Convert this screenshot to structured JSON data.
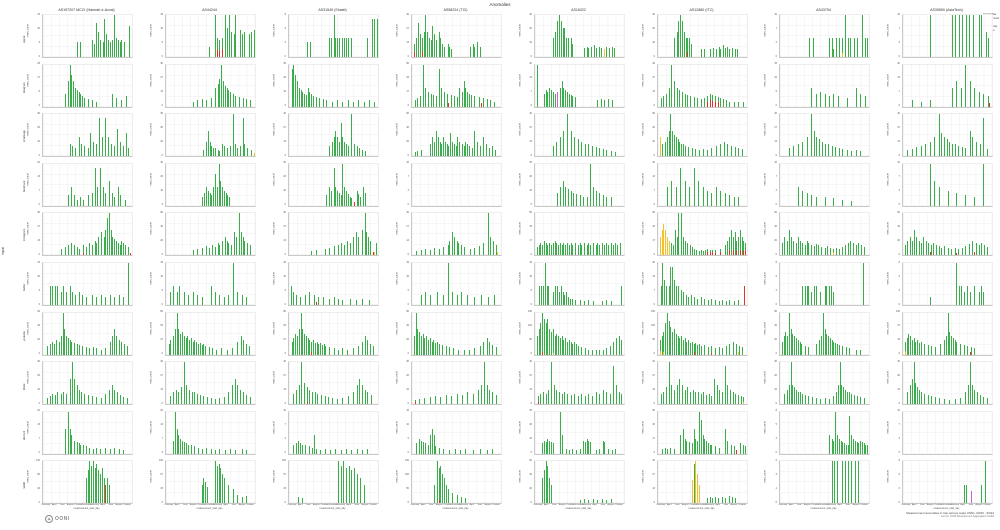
{
  "title": "Anomalies",
  "legend": {
    "title": "Anomalies",
    "entries": [
      {
        "label": "confirmed",
        "key": "confirmed"
      },
      {
        "label": "ok",
        "key": "ok"
      },
      {
        "label": "anomaly",
        "key": "anomaly"
      },
      {
        "label": "failure",
        "key": "failure"
      }
    ]
  },
  "colors": {
    "ok": "#3bad4c",
    "anomaly": "#f2c12e",
    "confirmed": "#e0322a",
    "failure": "#d45fd4",
    "grid": "#ededed"
  },
  "axes": {
    "row_axis_label": "input",
    "y_label": "msm_count",
    "x_label": "measurement_start_day",
    "x_ticks": [
      "February",
      "April",
      "June",
      "August",
      "October",
      "December",
      "February",
      "April",
      "June",
      "August",
      "October"
    ]
  },
  "columns": [
    "AS197207 MCCI (Hamrah-e-Avval)",
    "AS44244",
    "AS31549 (Shatel)",
    "AS58224 (TCI)",
    "AS16322",
    "AS12880 (ITC)",
    "AS43754",
    "AS39650 (AsiaTech)"
  ],
  "rows": [
    "signal",
    "telegram",
    "whatsapp",
    "facebook",
    "instagram",
    "twitter",
    "youtube",
    "tiktok",
    "discord",
    "reddit"
  ],
  "footer": {
    "logo_text": "OONI",
    "logo_glyph": "◉",
    "caption": "Measurement anomalies in Iran across major ASNs, 03/23 - 03/24",
    "caption_sub": "source: OONI Measurement Aggregation Toolkit"
  },
  "chart_data": {
    "type": "bar",
    "note": "Faceted weekly measurement counts. Each cell bar token = position%(x of 2-year span),height%(of cell ymax),color(g=ok,y=anomaly,r=confirmed,m=failure; default g). m = cell y-axis max (msm_count).",
    "x_range": [
      "2023-01",
      "2024-10"
    ],
    "cells": {
      "r1c1": {
        "m": 15,
        "b": "38,35|42,35|55,40|57,30|60,80|62,60|64,40|67,35|69,90|71,55|73,40|75,35|78,40|80,100|82,45|84,40|86,35|88,40|91,35|97,75"
      },
      "r1c2": {
        "m": 15,
        "b": "48,25|55,100|57,45|57,18,r|60,40|60,15,r|63,45|63,18,r|66,100|68,70|71,100|73,60|76,55|78,100|83,65|85,55|88,60|93,55|96,60|99,65"
      },
      "r1c3": {
        "m": 8,
        "b": "20,35|24,35|45,45|47,45|50,100|52,45|54,45|56,45|60,45|62,45|64,45|66,45|70,45|88,45|93,90|96,90|99,90"
      },
      "r1c4": {
        "m": 40,
        "b": "2,30|2,12,r|5,45|7,80|9,55|11,45|11,14,r|13,60|15,100|17,60|19,45|21,40|23,75|25,55|27,40|30,60|32,45|34,30|36,25|40,30|42,25|44,20|65,25|68,30|70,25|73,35|76,25"
      },
      "r1c5": {
        "m": 30,
        "b": "20,45|23,60|25,85|27,100|29,85|31,70|33,70|35,45|37,45|40,45|42,30|55,22|58,25|60,22|63,25|66,28|68,22|72,25|74,22|78,20,y|80,25|83,22|86,25|89,22"
      },
      "r1c6": {
        "m": 30,
        "b": "18,45|21,60|23,85|25,100|27,85|29,60|31,45|33,45|33,12,r|35,45|37,30|48,18|52,20|58,18|62,22|65,18|68,25|70,20|73,28|75,22|78,25|80,20|83,22|86,18|89,20"
      },
      "r1c7": {
        "m": 10,
        "b": "33,45|37,45|55,45|58,45|60,20|63,45|66,45|70,45|70,9,y|73,100|76,45|79,45|83,45|86,45|92,100|95,45|98,45"
      },
      "r1c8": {
        "m": 10,
        "b": "30,100|55,100|58,100|63,100|66,100|71,100|74,100|79,100|85,100|88,100|93,60|96,45"
      },
      "r2c1": {
        "m": 25,
        "b": "25,30|28,60|30,100|32,75|34,60|36,45|38,40|40,35|42,30|44,25|46,20|50,18|55,15|60,12|78,30|82,20|88,15|93,25"
      },
      "r2c2": {
        "m": 40,
        "b": "30,12|35,15|40,18|45,15|50,20|55,45|58,55|60,65|62,100|64,60|66,50|68,45|70,40|72,35|75,30|78,25|82,22|86,20|90,18|94,15"
      },
      "r2c3": {
        "m": 30,
        "b": "3,90|5,100|7,75|9,60|11,45|13,40|15,35|17,30|19,28|21,45|23,35|25,30|27,25|30,22|34,20|38,18|42,15|48,12|54,15|60,12|66,15|72,12|78,15|84,12|90,15|96,12"
      },
      "r2c4": {
        "m": 50,
        "b": "3,15|6,20|9,25|12,100|15,45|18,35|21,30|24,28|27,25|30,90|33,45|36,35|39,30|41,9,r|44,28|47,25|50,22|53,45|56,35|58,60|60,45|62,35|64,30|66,28|70,25|75,22|78,9,r|80,20|84,18|88,15|92,12"
      },
      "r2c5": {
        "m": 20,
        "b": "2,100|10,30|12,40|14,35|16,45|18,40|20,35|22,30|25,35,m|28,45|30,60|32,45|34,40|36,35|38,30|40,28|42,25|45,22|70,15|74,18|78,15|82,18|86,15"
      },
      "r2c6": {
        "m": 40,
        "b": "3,20|6,25|9,30|12,45|15,100|18,60|21,45|24,40|27,35|30,30|33,28|36,25|40,22|44,20|48,18|52,20|55,25|55,12,r|58,30|58,15,r|61,28|61,14,r|64,25|64,12,r|67,22|67,11,r|70,20|73,18|76,15|80,12|85,10|90,12|95,10"
      },
      "r2c7": {
        "m": 15,
        "b": "35,45|40,30|45,35|50,30|55,25|60,30|65,25|75,20|85,45|90,30|95,25"
      },
      "r2c8": {
        "m": 20,
        "b": "10,15|20,12|30,15|55,45|60,60|65,45|70,100|75,60|80,45|85,35|90,30|95,25|97,9,r"
      },
      "r3c1": {
        "m": 30,
        "b": "30,30|33,25|36,20|40,45|43,30|46,25|50,20|53,55|56,35|60,30|63,90|66,45|70,90|73,45|76,30|80,25|83,65|86,35|90,25|93,55|96,20"
      },
      "r3c2": {
        "m": 30,
        "b": "42,15|45,35|47,60|49,35|51,25|53,20|55,20|58,15|60,12|63,30|65,25|68,20|72,25|75,100|78,30|80,20|83,25|86,90|88,30|91,20|95,15|99,8,y"
      },
      "r3c3": {
        "m": 40,
        "b": "45,25|48,35|50,45|52,60|54,45|56,35|58,80|60,45|62,35|64,30|66,25|70,100|73,30|76,25|79,20|82,15|85,12"
      },
      "r3c4": {
        "m": 60,
        "b": "3,10|6,12|10,15|20,30|23,45|25,35|27,60|29,45|31,35|33,30|35,45|37,35|39,30|41,25|43,55|45,35|47,30|49,25|51,45|53,35|56,30|58,25|60,35|62,30|64,25|67,20|70,60|73,35|76,25|80,45|83,30|86,20|90,25|93,15"
      },
      "r3c5": {
        "m": 40,
        "b": "20,25|24,35|28,45|32,60|36,100|40,60|44,45|48,40|52,35|56,30|60,28|64,25|68,22|72,20|76,18|80,15|85,12|90,10"
      },
      "r3c6": {
        "m": 60,
        "b": "2,45,y|5,30|8,35|10,45|12,60|14,100|16,60|18,50|20,45|22,40|24,35|26,30|28,28|30,25|34,22|38,20|42,18|46,15|50,18|55,15|60,20|65,25|70,30|74,35|78,30|82,25|86,22|90,20|94,18"
      },
      "r3c7": {
        "m": 40,
        "b": "10,20|15,25|20,30|25,35|30,45|35,100|38,60|41,45|44,40|47,35|50,30|54,28|58,25|62,22|66,20|70,18|75,15|80,12|85,15|90,12"
      },
      "r3c8": {
        "m": 40,
        "b": "5,15|10,18|15,22|20,25|25,30|30,35|35,45|40,100|43,55|46,45|49,40|52,35|55,30|58,28|62,25|66,22|70,20|75,60|78,45|82,35|86,28|90,90|94,18"
      },
      "r4c1": {
        "m": 20,
        "b": "28,25|32,45|35,25|38,15|42,20|45,15|50,25|55,30|58,90|61,45|64,90|67,45|70,30|74,60|77,30|80,20|84,45|87,25|92,15"
      },
      "r4c2": {
        "m": 30,
        "b": "40,20|43,30|45,45|47,35|49,30|51,25|53,45|55,75|57,45|59,100|61,60|63,45|65,35|67,30|69,25|71,20"
      },
      "r4c3": {
        "m": 30,
        "b": "42,25|45,45|47,35|50,90|52,45|54,35|56,30|58,25|60,100|62,45|64,35|66,28|68,22|70,18|73,9,r|76,35|78,28|80,22|83,45|85,30"
      },
      "r4c4": {
        "m": 10,
        "b": ""
      },
      "r4c5": {
        "m": 30,
        "b": "25,30|28,45|31,60|34,45|37,40|40,35|43,30|46,28|50,25|54,22|58,20|62,100|65,45|68,35|72,30|76,25|80,22|85,20"
      },
      "r4c6": {
        "m": 20,
        "b": "10,45|15,60|20,45|25,90|30,60|35,45|40,90|45,60|50,45|55,35|60,30|65,45|70,35|75,30|80,25|85,22|90,20"
      },
      "r4c7": {
        "m": 10,
        "b": "20,45|25,35|30,30|35,25|40,22|50,20|60,18|70,15|80,12"
      },
      "r4c8": {
        "m": 10,
        "b": "30,100|35,60|40,45|50,35|60,30|70,25|80,20|90,100"
      },
      "r5c1": {
        "m": 40,
        "b": "20,15|25,20|28,25|32,30|35,25|38,20|40,15|45,25|45,6,r|48,20|52,30|55,25|58,35|60,30|62,45|65,55|68,45|70,60|72,90|74,100|76,60|78,45|80,40|82,35|84,30|86,25|88,35|90,30|92,25|95,20|98,6,r"
      },
      "r5c2": {
        "m": 60,
        "b": "30,12|35,15|40,18|45,22|48,18|52,25|55,20|58,30|60,25|63,35|66,45|68,35|70,30|73,25|76,55|79,45|82,100|84,55|86,45|88,35|91,30|94,25"
      },
      "r5c3": {
        "m": 40,
        "b": "25,10|30,12|40,15|45,18|50,22|55,25|58,30|62,25|65,35|68,30|72,45|75,55|78,45|82,60|85,100|87,55|89,45|91,35|94,9,r|96,8,y|98,30"
      },
      "r5c4": {
        "m": 40,
        "b": "5,10|10,12|15,15|20,12|25,18|30,15|35,20|40,25|42,35|45,55|47,45|50,35|52,30|55,25|58,20|65,15|70,18|75,22|80,30|85,100|88,45|91,35|94,25|96,9,y"
      },
      "r5c5": {
        "m": 50,
        "b": "2,20|4,25|6,30|8,25|10,35|12,30|14,25|16,30|18,25|20,30|22,35|24,30|26,25|28,30|30,25|32,30|34,25|36,30|38,25|40,30|42,25|45,30|48,25|50,30|52,25|55,30|58,25|60,30|62,25|65,30|68,25|70,30|72,25|75,30|78,25|80,30|82,25|85,30|88,25|90,30|92,25|95,30"
      },
      "r5c6": {
        "m": 50,
        "b": "2,45,y|4,60,y|6,75,y|8,60,y|10,45,y|12,35,y|15,30|17,25|19,60|21,45|23,100|26,100|28,45|30,35|33,30|36,25|38,20|40,15|43,12|46,10|48,12|50,10|53,12|55,15|55,8,r|58,14|58,7,r|61,13|61,7,r|64,12|64,6,r|70,15|70,7,r|75,25|78,35|80,45|80,12,r|82,60|84,45|84,14,r|86,55|88,35|88,10,r|90,45|92,60|92,12,r|94,45|96,35|96,10,r|98,30|98,14,r"
      },
      "r5c7": {
        "m": 60,
        "b": "2,30|5,45|8,35|10,60|12,45|15,35|18,30|20,45|22,35|25,30|28,25|30,35|32,30|35,25|38,22|40,28|43,25|46,20|50,18|53,22|56,18|60,15|60,8,y|63,18|66,15|70,20|73,25|76,30|79,35|82,30|85,25|88,30|91,25|94,20"
      },
      "r5c8": {
        "m": 60,
        "b": "2,25|5,35|8,45|10,35|12,60|15,45|18,35|20,30|23,45|26,35|28,30|30,8,r|31,25|34,30|37,25|40,22|43,18|46,22|50,18|54,15|58,18|60,6,r|62,15|66,18|70,22|74,28|78,35|80,8,r|82,30|85,25|88,30|91,25|94,20"
      },
      "r6c1": {
        "m": 15,
        "b": "8,45|10,45|13,45|16,45|20,30|23,45|26,30|30,45|33,30|36,25|40,30|44,25|48,20|55,25|60,20|65,25|70,20|75,25|80,20|85,25|90,20|95,100"
      },
      "r6c2": {
        "m": 15,
        "b": "5,30|8,45|12,30|15,45|20,30|25,25|30,30|35,25|40,20|50,45|55,30|60,25|65,20|70,25|75,100|80,30|85,25|90,20"
      },
      "r6c3": {
        "m": 15,
        "b": "2,45|5,30|8,25|12,20|18,25|22,30|28,25|30,8,r|33,20|38,18|45,15|50,18|55,15|60,12|68,15|75,12|82,15|90,12"
      },
      "r6c4": {
        "m": 15,
        "b": "10,25|15,30|20,25|28,30|35,25|40,100|45,30|50,25|55,30|62,25|70,20|78,25|85,20|92,25"
      },
      "r6c5": {
        "m": 15,
        "b": "5,45|7,45|9,45|11,100|13,45|15,45|20,30|23,45|25,45|27,30|29,45|31,30|33,25|35,30|37,20|39,15|42,15|45,12|50,12|55,10|60,12|65,10|75,10|80,12|85,10|97,45"
      },
      "r6c6": {
        "m": 20,
        "b": "3,45|5,100|7,60|9,45|12,45|14,90|16,90|18,60|20,45|23,45|26,35|28,30|31,25|34,20|37,25|40,18|44,15|48,18|52,15|56,12|60,15|64,12|68,10|72,12|76,10|80,12|85,10|90,12|97,45,r"
      },
      "r6c7": {
        "m": 8,
        "b": "25,45|28,45|30,45|32,45|35,30|38,45|40,45|45,30|50,45|52,45|55,45|57,45|60,30|93,100"
      },
      "r6c8": {
        "m": 8,
        "b": "30,20|60,100|63,45|65,45|68,30|72,45|75,30|80,45|85,30|88,45|90,30"
      },
      "r7c1": {
        "m": 60,
        "b": "5,20|8,25|10,30|12,25|15,35|18,30|20,45|22,100|24,60|26,45|28,40|30,35|32,30|35,28|38,25|40,22|44,20|48,18|52,15|56,18|60,15|65,12|70,15|75,30|78,45|80,60|82,45|85,35|88,30|91,25|94,20"
      },
      "r7c2": {
        "m": 80,
        "b": "3,25|5,35|8,45|10,60|12,100|14,60|16,50|18,55|20,45|22,40|24,45|26,35|28,40|30,30|32,35|34,30|36,25|38,28|40,22|42,25|44,20|48,18|52,15|56,12|62,15|68,12|74,15|80,30|84,45|87,35|90,25|93,20"
      },
      "r7c3": {
        "m": 80,
        "b": "3,30|5,40|7,50|9,45|11,60|13,100|15,60|17,50|19,45|21,40|23,35|25,30|25,6,r|27,35|29,28|31,30|33,25|35,28|37,22|39,25|41,20|45,18|50,15|55,12|60,15|65,12|72,15|78,20|82,30|85,45|88,35|91,25|94,20"
      },
      "r7c4": {
        "m": 60,
        "b": "2,45|4,100|6,60|8,55|10,45|12,50|14,40|16,45|18,35|20,40|22,30|24,35|26,28|28,30|30,25|34,22|38,20|42,18|46,15|52,12|58,10|64,12|70,15|76,20|80,30|84,40|87,30|90,22|94,18"
      },
      "r7c5": {
        "m": 150,
        "b": "2,45|4,60|6,75|8,100|8,6,r|10,85|12,75|14,85|16,60|18,55|20,60|20,5,y|22,45|24,50|26,45|28,40|30,45|32,35|34,40|36,30|38,35|40,30|42,25|44,30|46,25|48,20|52,18|56,15|60,12|64,10|68,12|72,10|76,12|80,15|84,20|88,30|91,40|94,45|97,35"
      },
      "r7c6": {
        "m": 150,
        "b": "2,35|2,8,y|4,45|6,55|6,6,y|8,75|10,100|12,80|14,65|16,55|18,60|20,50|22,45|24,40|26,45|28,35|30,40|32,30|34,35|36,28|38,30|40,25|40,6,r|42,28|44,22|46,25|48,20|52,22|56,18|60,20|60,5,r|64,15|68,18|72,15|76,20|80,25|84,30|88,25|90,6,y|91,20|94,18"
      },
      "r7c7": {
        "m": 60,
        "b": "2,30|4,45|6,55|8,45|10,100|12,60|14,50|16,45|18,40|20,35|22,30|24,25|28,20|32,18|40,25|44,35|46,45|48,100|50,60|52,50|54,45|56,40|58,35|60,30|62,28|64,25|66,22|70,20|74,18|78,15|85,12|90,10"
      },
      "r7c8": {
        "m": 100,
        "b": "2,30|2,8,y|4,40|6,50|8,45|10,35|12,40|14,30|16,35|18,28|20,30|24,25|28,22|32,20|36,18|42,25|46,35|48,45|50,100|52,55|54,45|56,40|58,35|60,30|64,25|68,22|72,20|75,6,r|76,18|80,15"
      },
      "r8c1": {
        "m": 30,
        "b": "5,15|8,20|10,25|13,22|16,28|20,25|23,30|26,25|30,60|33,100|35,60|38,45|40,35|43,30|46,25|50,22|55,20|60,18|65,15|70,25|74,35|77,45|80,35|83,28|86,22|90,18|94,15"
      },
      "r8c2": {
        "m": 40,
        "b": "5,20|8,28|11,35|14,30|17,40|20,100|23,45|26,35|29,30|32,28|35,25|38,22|42,20|46,18|50,15|55,12|60,15|65,18|70,30|74,45|77,60|80,45|83,35|86,28|90,22|94,18"
      },
      "r8c3": {
        "m": 40,
        "b": "5,25|8,35|11,45|14,100|17,50|20,40|20,6,r|23,35|26,30|29,28|32,25|36,22|40,20|44,18|48,15|54,12|60,15|66,20|72,30|76,45|79,60|82,45|85,35|88,28|92,22"
      },
      "r8c4": {
        "m": 30,
        "b": "3,10|3,6,r|8,12|14,15|20,18|26,20|32,18|38,22|44,20|50,25|56,22|62,28|68,25|74,35|78,45|81,100|84,45|87,35|90,28|94,22"
      },
      "r8c5": {
        "m": 40,
        "b": "3,20|3,6,r|6,25|9,30|12,25|15,35|18,100|21,45|24,35|27,30|30,25|33,30|36,25|40,22|44,25|48,20|52,25|56,20|60,25|64,20|68,30|72,25|76,35|80,30|84,25|88,90|91,45|94,30|97,25"
      },
      "r8c6": {
        "m": 40,
        "b": "3,25|6,30|9,40|12,100|15,45|18,35|21,45|24,60|27,45|30,35|33,40|36,30|39,35|42,28|45,30|48,25|51,28|54,22|57,25|60,20|63,60|66,45|69,35|72,30|75,90|78,45|81,35|84,30|87,25|90,22|93,20|96,18|96,6,y"
      },
      "r8c7": {
        "m": 30,
        "b": "5,25|8,35|10,45|12,100|14,45|16,40|18,35|20,30|22,28|25,25|28,22|32,20|36,18|40,15|45,12|50,15|55,12|60,20|63,30|65,45|67,100|69,45|71,40|73,35|75,30|77,28|80,25|83,22|86,20|90,18|94,15"
      },
      "r8c8": {
        "m": 30,
        "b": "5,30|8,45|10,60|12,100|14,50|16,40|18,35|20,30|24,25|28,22|32,20|36,18|40,15|46,12|52,10|58,12|64,15|70,30|73,45|75,100|77,45|80,35|83,28|86,22|90,18|94,15"
      },
      "r9c1": {
        "m": 20,
        "b": "25,60|28,100|30,60|32,45|35,30|38,28|40,25|42,22|45,20|48,18|52,15|56,12|60,15|64,12|70,15|75,12|80,15|85,12|90,10"
      },
      "r9c2": {
        "m": 20,
        "b": "8,30|10,100|12,60|14,45|16,35|18,30|20,28|22,25|25,22|28,20|32,18|36,15|40,12|45,15|50,12|55,10|60,12|66,10|72,12|78,10|85,12|90,10"
      },
      "r9c3": {
        "m": 10,
        "b": "5,20|8,25|10,30|12,25|15,22|18,20|22,18|26,15|28,45|30,12|35,10|40,12|46,10|52,12|58,10|64,12|70,10|76,12|82,10|88,12"
      },
      "r9c4": {
        "m": 15,
        "b": "5,25|8,35|10,30|12,28|15,25|18,22|20,45|23,60|25,45|26,18|30,15|35,12|42,10|48,12|54,10|60,12|68,10|76,12|84,10|90,12"
      },
      "r9c5": {
        "m": 30,
        "b": "8,25|10,30|12,28|14,35|16,30|18,28|20,25|28,100|30,45|35,12|38,10|42,12|46,10|50,12|54,30|56,28|58,35|60,30|62,28|68,10|72,12|76,30|78,28|82,12|86,10|90,12"
      },
      "r9c6": {
        "m": 50,
        "b": "5,12|8,15|10,12|14,15|18,12|25,45|28,60|30,35|32,30|35,28|38,25|40,60|42,35|44,30|46,100|48,80|50,45|52,35|54,30|56,25|58,22|60,20|64,18|68,15|75,60|78,30|82,22|85,18|88,9,r|92,25|95,20|98,18"
      },
      "r9c7": {
        "m": 8,
        "b": "55,45|58,35|60,30|62,100|64,45|66,35|68,30|70,28|72,25|74,22|76,20|78,90|80,45|82,35|84,30|86,28|88,25|90,30|92,28|94,25|96,22|98,20"
      },
      "r9c8": {
        "m": 10,
        "b": ""
      },
      "r10c1": {
        "m": 120,
        "b": "48,60|50,80|52,100|54,90|56,100|58,85|60,95|62,80|64,70|66,85|68,60|70,45,r|72,60|74,45"
      },
      "r10c2": {
        "m": 100,
        "b": "40,45|42,60|44,50|46,40|55,100|57,90|59,95|61,85|63,70|65,60|70,45|75,35|80,20|85,15|90,18"
      },
      "r10c3": {
        "m": 100,
        "b": "10,15|15,12|55,100|58,90|61,100|64,85|67,90|70,80|73,85|76,70|80,60|84,45"
      },
      "r10c4": {
        "m": 150,
        "b": "25,45|28,100|30,85|30,8,r|32,90|34,70|36,60|38,45|40,35|45,25|50,20|55,15|60,12"
      },
      "r10c5": {
        "m": 60,
        "b": "8,60|10,80|12,100|14,90|16,60|18,45|50,8|55,10|60,8|65,10|70,8|75,10|80,8|85,10"
      },
      "r10c6": {
        "m": 40,
        "b": "38,55,y|40,85,y|41,95|42,100,y|44,70,y|46,45,y|55,12|58,15|61,12|64,15|67,12|72,15|75,12|80,18|83,15|86,12"
      },
      "r10c7": {
        "m": 5,
        "b": "58,100|61,100|64,100|70,100|73,100|76,100|80,100|84,100|88,100"
      },
      "r10c8": {
        "m": 8,
        "b": "68,45|71,45|76,30,m|88,45|92,100"
      }
    }
  }
}
